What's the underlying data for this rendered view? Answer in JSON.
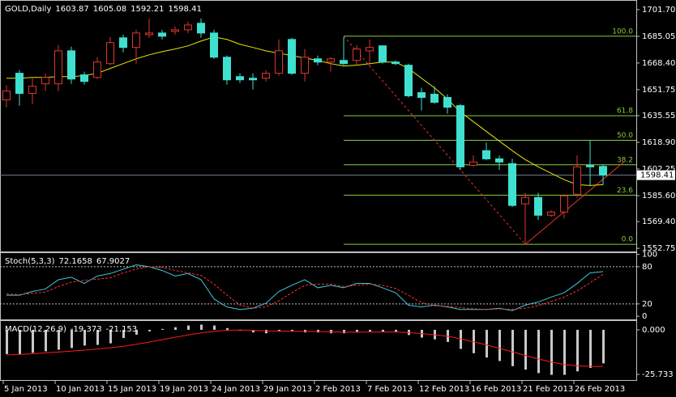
{
  "chart_data": [
    {
      "type": "candlestick",
      "title": "GOLD,Daily",
      "categories": [
        "5 Jan 2013",
        null,
        null,
        null,
        "10 Jan 2013",
        null,
        null,
        null,
        "15 Jan 2013",
        null,
        null,
        null,
        "19 Jan 2013",
        null,
        null,
        null,
        "24 Jan 2013",
        null,
        null,
        null,
        "29 Jan 2013",
        null,
        null,
        null,
        "2 Feb 2013",
        null,
        null,
        null,
        "7 Feb 2013",
        null,
        null,
        null,
        "12 Feb 2013",
        null,
        null,
        null,
        "16 Feb 2013",
        null,
        null,
        null,
        "21 Feb 2013",
        null,
        null,
        null,
        "26 Feb 2013",
        null,
        null
      ],
      "open": [
        1645.4,
        1662.0,
        1649.4,
        1655.4,
        1655.4,
        1676.0,
        1661.0,
        1659.4,
        1668.0,
        1684.1,
        1678.1,
        1686.1,
        1687.1,
        1688.1,
        1689.1,
        1693.2,
        1687.1,
        1672.0,
        1659.9,
        1658.9,
        1658.9,
        1662.0,
        1683.1,
        1662.0,
        1671.0,
        1669.0,
        1670.0,
        1670.0,
        1676.0,
        1679.1,
        1669.0,
        1667.0,
        1649.9,
        1648.9,
        1646.9,
        1641.8,
        1604.6,
        1613.7,
        1608.6,
        1605.6,
        1580.5,
        1584.5,
        1573.4,
        1575.4,
        1586.5,
        1604.6,
        1603.87
      ],
      "high": [
        1654.4,
        1664.0,
        1659.4,
        1662.0,
        1679.6,
        1678.6,
        1663.0,
        1672.0,
        1684.6,
        1686.1,
        1689.1,
        1696.2,
        1689.1,
        1691.1,
        1694.2,
        1696.2,
        1689.1,
        1673.0,
        1662.0,
        1662.0,
        1664.0,
        1683.1,
        1684.1,
        1677.1,
        1673.0,
        1672.0,
        1684.6,
        1679.6,
        1683.1,
        1679.6,
        1670.0,
        1668.0,
        1652.9,
        1653.9,
        1648.9,
        1642.9,
        1610.7,
        1618.7,
        1610.7,
        1608.6,
        1587.5,
        1587.5,
        1576.4,
        1586.5,
        1610.7,
        1620.2,
        1605.08
      ],
      "low": [
        1640.8,
        1641.8,
        1642.9,
        1650.9,
        1650.9,
        1655.4,
        1654.9,
        1658.4,
        1667.0,
        1675.0,
        1668.0,
        1684.1,
        1683.1,
        1686.1,
        1687.1,
        1684.1,
        1671.0,
        1654.9,
        1655.9,
        1651.9,
        1656.9,
        1660.5,
        1661.0,
        1656.9,
        1667.0,
        1663.0,
        1667.0,
        1667.0,
        1667.0,
        1668.0,
        1667.0,
        1646.9,
        1638.8,
        1642.9,
        1636.8,
        1601.6,
        1603.6,
        1607.6,
        1601.6,
        1578.5,
        1555.3,
        1570.4,
        1572.4,
        1571.4,
        1584.5,
        1591.5,
        1592.21
      ],
      "close": [
        1650.9,
        1649.4,
        1653.9,
        1659.4,
        1676.0,
        1658.4,
        1656.9,
        1669.0,
        1681.1,
        1678.1,
        1687.1,
        1687.1,
        1685.1,
        1689.1,
        1692.1,
        1687.1,
        1672.0,
        1657.9,
        1657.9,
        1657.9,
        1662.0,
        1676.0,
        1662.0,
        1672.0,
        1669.0,
        1671.0,
        1668.0,
        1677.1,
        1678.1,
        1669.0,
        1668.0,
        1647.9,
        1646.9,
        1643.9,
        1640.8,
        1603.6,
        1606.6,
        1608.6,
        1606.6,
        1579.5,
        1584.5,
        1573.4,
        1575.4,
        1585.5,
        1603.6,
        1603.6,
        1598.41
      ],
      "up_color": "#e0362c",
      "down_color": "#40e0d0",
      "ma_values": [
        1658.9,
        1658.9,
        1659.4,
        1659.4,
        1659.9,
        1659.9,
        1660.5,
        1662.0,
        1665.0,
        1668.0,
        1671.0,
        1673.5,
        1675.5,
        1677.1,
        1679.1,
        1682.1,
        1684.6,
        1683.1,
        1680.1,
        1678.1,
        1676.0,
        1674.5,
        1673.0,
        1671.5,
        1670.0,
        1668.0,
        1666.5,
        1667.0,
        1668.0,
        1669.0,
        1669.0,
        1665.0,
        1658.9,
        1652.9,
        1645.9,
        1637.8,
        1631.8,
        1625.7,
        1619.7,
        1613.7,
        1608.1,
        1603.6,
        1599.6,
        1595.6,
        1592.5,
        1592.0,
        1592.5
      ],
      "ma_color": "#e8e800",
      "fib_levels": [
        {
          "label": "100.0",
          "value": 1685.1
        },
        {
          "label": "61.8",
          "value": 1635.5
        },
        {
          "label": "50.0",
          "value": 1620.2
        },
        {
          "label": "38.2",
          "value": 1604.9
        },
        {
          "label": "23.6",
          "value": 1585.9
        },
        {
          "label": "0.0",
          "value": 1555.3
        }
      ],
      "fib_color": "#8ccc3c",
      "trendlines": [
        {
          "points": [
            [
              26,
              1685.1
            ],
            [
              40,
              1555.3
            ]
          ],
          "dashed": true,
          "color": "#e0362c"
        },
        {
          "points": [
            [
              40,
              1555.3
            ],
            [
              47.6,
              1606.6
            ]
          ],
          "dashed": false,
          "color": "#e0362c"
        }
      ],
      "ylim": [
        1550.8,
        1707.2
      ],
      "yticks": [
        {
          "value": 1701.7,
          "label": "1701.70"
        },
        1685.05,
        {
          "value": 1668.4,
          "label": "1668.40"
        },
        1651.75,
        1635.55,
        {
          "value": 1618.9,
          "label": "1618.90"
        },
        1602.25,
        {
          "value": 1585.6,
          "label": "1585.60"
        },
        {
          "value": 1569.4,
          "label": "1569.40"
        },
        1552.75
      ]
    },
    {
      "type": "line",
      "title": "Stoch(5,3,3)",
      "series": [
        {
          "color": "#3cc8dc",
          "dashed": false,
          "values": [
            34,
            34,
            40,
            44,
            59,
            63,
            53,
            65,
            69,
            76,
            83,
            80,
            74,
            65,
            69,
            59,
            28,
            15,
            11,
            13,
            21,
            40,
            50,
            59,
            46,
            50,
            46,
            53,
            53,
            46,
            38,
            18,
            15,
            18,
            15,
            11,
            11,
            11,
            13,
            9,
            18,
            23,
            31,
            38,
            53,
            70,
            72.1658
          ]
        },
        {
          "color": "#ff3030",
          "dashed": true,
          "values": [
            36,
            35,
            37,
            39,
            48,
            55,
            58,
            60,
            62,
            70,
            76,
            80,
            79,
            74,
            70,
            66,
            52,
            34,
            18,
            13,
            15,
            25,
            38,
            50,
            52,
            52,
            48,
            50,
            52,
            50,
            45,
            34,
            22,
            17,
            16,
            14,
            12,
            11,
            12,
            11,
            13,
            17,
            24,
            31,
            41,
            54,
            67.9027
          ]
        }
      ],
      "levels": [
        80,
        20
      ],
      "ylim": [
        -5,
        102
      ],
      "yticks": [
        100,
        80,
        20,
        0
      ]
    },
    {
      "type": "macd",
      "title": "MACD(12,26,9)",
      "series": [
        {
          "color": "#c8c8c8",
          "values": [
            -14,
            -14,
            -13.3,
            -12.4,
            -11.5,
            -10.5,
            -9.1,
            -8.7,
            -7.8,
            -4.7,
            -2.8,
            -0.9,
            0.5,
            1.5,
            2.5,
            3,
            2.5,
            1,
            -0.5,
            -1.5,
            -2,
            -1,
            -1,
            -1.5,
            -1.5,
            -2,
            -2,
            -1.5,
            -1,
            -1,
            -1.5,
            -3,
            -4.5,
            -5.5,
            -7,
            -11,
            -13.5,
            -16,
            -18,
            -21,
            -23,
            -25,
            -26,
            -26,
            -24,
            -22,
            -19.373
          ]
        },
        {
          "color": "#ff1a1a",
          "values": [
            -14.5,
            -14.2,
            -13.8,
            -13.3,
            -12.8,
            -12.3,
            -11.7,
            -11.1,
            -10.4,
            -9.5,
            -8.4,
            -7.1,
            -5.7,
            -4.3,
            -3,
            -1.8,
            -0.9,
            -0.3,
            -0.1,
            -0.3,
            -0.6,
            -0.7,
            -0.8,
            -0.9,
            -1,
            -1.2,
            -1.3,
            -1.3,
            -1.3,
            -1.2,
            -1.2,
            -1.6,
            -2.2,
            -2.9,
            -3.7,
            -5.2,
            -6.9,
            -8.7,
            -10.6,
            -12.7,
            -14.8,
            -16.8,
            -18.6,
            -20,
            -20.8,
            -21.1,
            -21.153
          ]
        }
      ],
      "ylim": [
        -29,
        5.1
      ],
      "yticks": [
        {
          "value": 0,
          "label": "0.000"
        },
        -25.733
      ]
    }
  ]
}
